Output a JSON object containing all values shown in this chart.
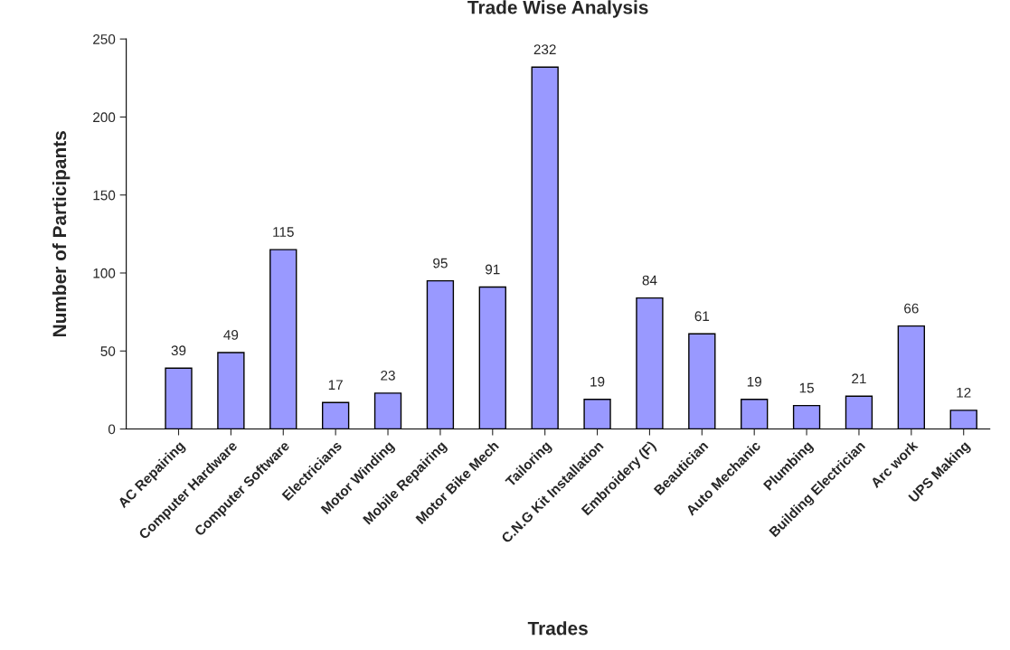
{
  "chart_data": {
    "type": "bar",
    "title": "Trade Wise Analysis",
    "xlabel": "Trades",
    "ylabel": "Number of Participants",
    "categories": [
      "AC Repairing",
      "Computer Hardware",
      "Computer Software",
      "Electricians",
      "Motor Winding",
      "Mobile Repairing",
      "Motor Bike Mech",
      "Tailoring",
      "C.N.G Kit Installation",
      "Embroidery (F)",
      "Beautician",
      "Auto Mechanic",
      "Plumbing",
      "Building Electrician",
      "Arc work",
      "UPS Making"
    ],
    "values": [
      39,
      49,
      115,
      17,
      23,
      95,
      91,
      232,
      19,
      84,
      61,
      19,
      15,
      21,
      66,
      12
    ],
    "color": "#9999ff",
    "ylim": [
      0,
      250
    ],
    "yticks": [
      0,
      50,
      100,
      150,
      200,
      250
    ],
    "grid": false,
    "data_labels": true
  }
}
